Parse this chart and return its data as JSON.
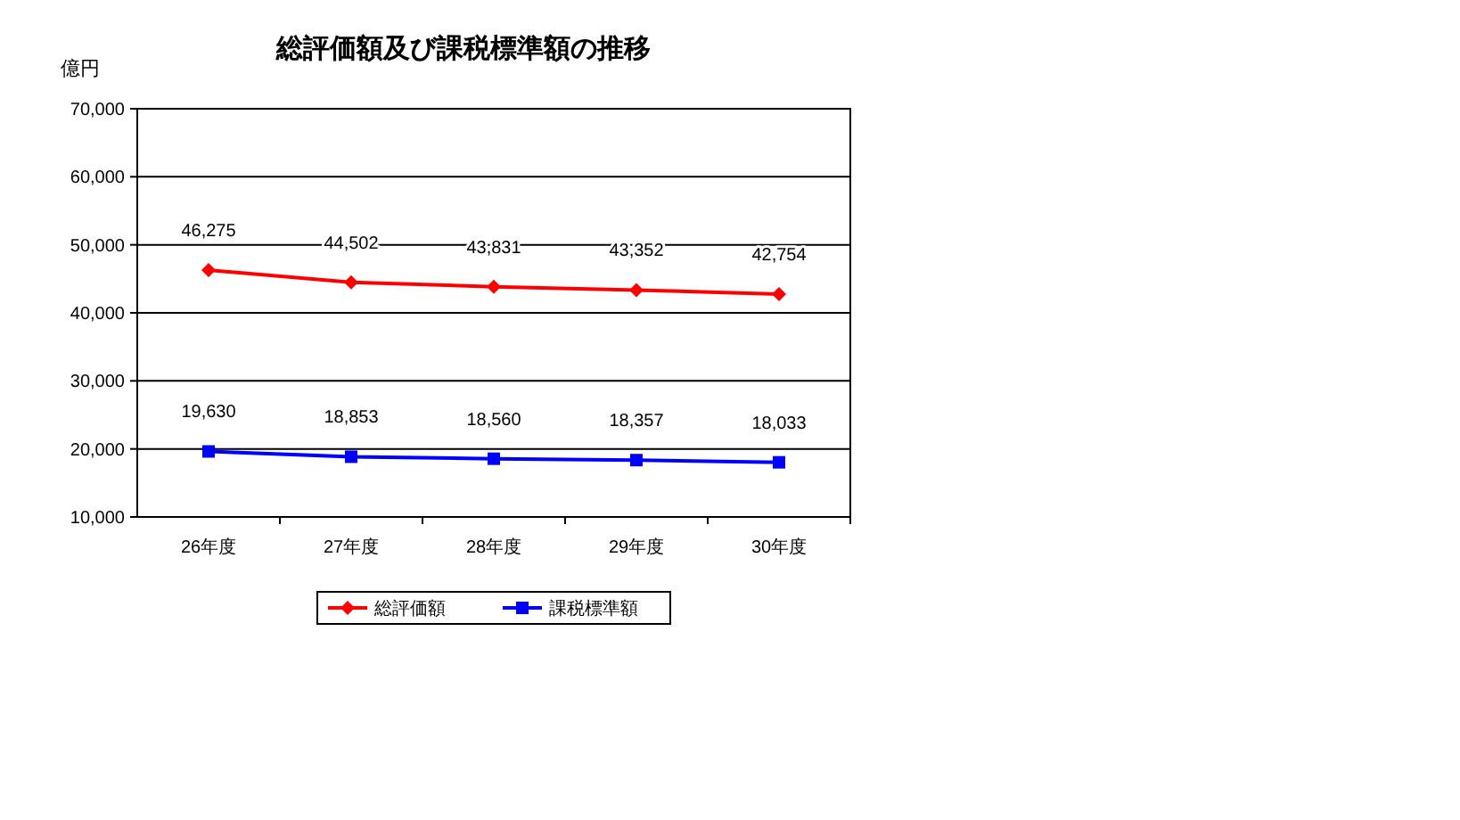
{
  "chart_data": {
    "type": "line",
    "title": "総評価額及び課税標準額の推移",
    "ylabel": "億円",
    "categories": [
      "26年度",
      "27年度",
      "28年度",
      "29年度",
      "30年度"
    ],
    "series": [
      {
        "name": "総評価額",
        "color": "#ff0000",
        "marker": "diamond",
        "values": [
          46275,
          44502,
          43831,
          43352,
          42754
        ],
        "value_labels": [
          "46,275",
          "44,502",
          "43,831",
          "43,352",
          "42,754"
        ]
      },
      {
        "name": "課税標準額",
        "color": "#0000ff",
        "marker": "square",
        "values": [
          19630,
          18853,
          18560,
          18357,
          18033
        ],
        "value_labels": [
          "19,630",
          "18,853",
          "18,560",
          "18,357",
          "18,033"
        ]
      }
    ],
    "ylim": [
      10000,
      70000
    ],
    "yticks": [
      {
        "value": 10000,
        "label": "10,000"
      },
      {
        "value": 20000,
        "label": "20,000"
      },
      {
        "value": 30000,
        "label": "30,000"
      },
      {
        "value": 40000,
        "label": "40,000"
      },
      {
        "value": 50000,
        "label": "50,000"
      },
      {
        "value": 60000,
        "label": "60,000"
      },
      {
        "value": 70000,
        "label": "70,000"
      }
    ],
    "grid": "y",
    "legend": "bottom"
  }
}
